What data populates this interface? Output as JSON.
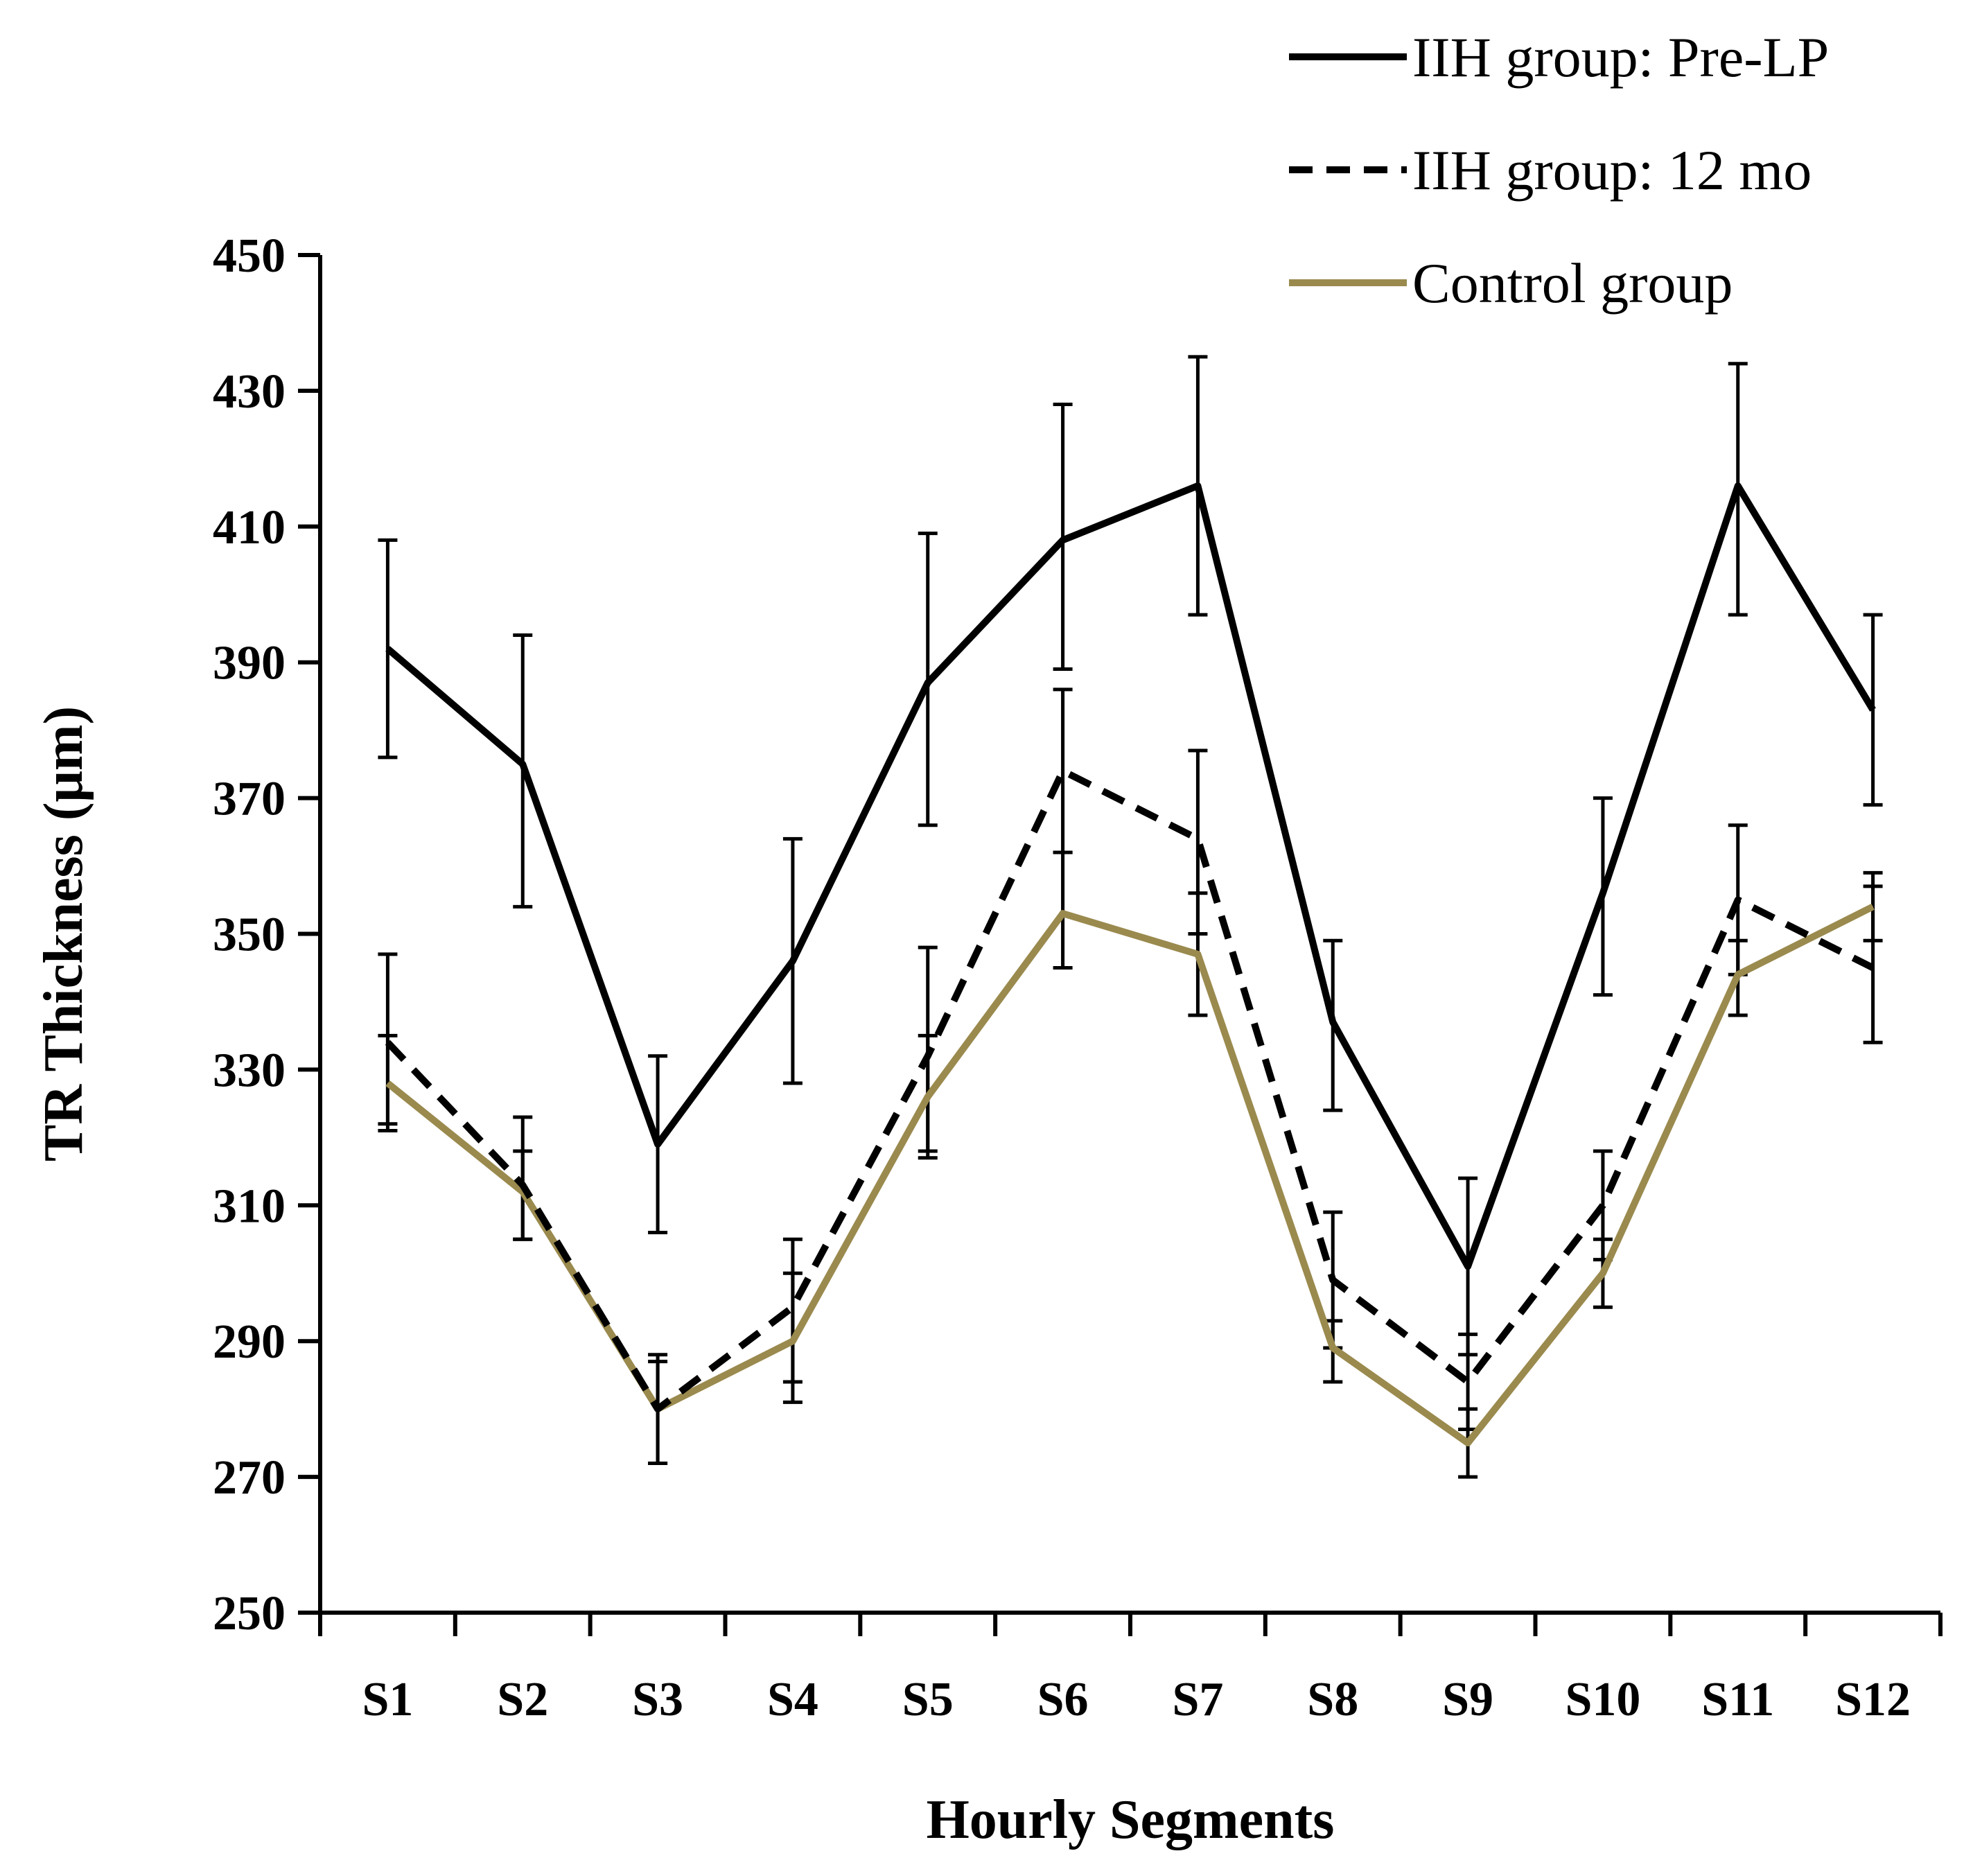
{
  "chart_data": {
    "type": "line",
    "title": "",
    "xlabel": "Hourly Segments",
    "ylabel": "TR Thickness (μm)",
    "ylim": [
      250,
      450
    ],
    "yticks": [
      250,
      270,
      290,
      310,
      330,
      350,
      370,
      390,
      410,
      430,
      450
    ],
    "ytick_labels": [
      "250",
      "270",
      "290",
      "310",
      "330",
      "350",
      "370",
      "390",
      "410",
      "430",
      "450"
    ],
    "categories": [
      "S1",
      "S2",
      "S3",
      "S4",
      "S5",
      "S6",
      "S7",
      "S8",
      "S9",
      "S10",
      "S11",
      "S12"
    ],
    "grid": false,
    "legend_position": "top-right",
    "series": [
      {
        "name": "IIH group: Pre-LP",
        "color": "#000000",
        "style": "solid",
        "values": [
          392,
          375,
          319,
          346,
          387,
          408,
          416,
          337,
          301,
          356,
          416,
          383
        ],
        "err_low": [
          376,
          354,
          306,
          328,
          366,
          389,
          397,
          324,
          288,
          341,
          397,
          369
        ],
        "err_high": [
          408,
          394,
          332,
          364,
          409,
          428,
          435,
          349,
          314,
          370,
          434,
          397
        ]
      },
      {
        "name": "IIH group: 12 mo",
        "color": "#000000",
        "style": "dashed",
        "values": [
          334,
          313,
          280,
          295,
          332,
          374,
          364,
          299,
          284,
          310,
          355,
          345
        ],
        "err_low": [
          322,
          305,
          272,
          284,
          317,
          362,
          350,
          289,
          277,
          302,
          344,
          334
        ],
        "err_high": [
          347,
          323,
          287,
          305,
          348,
          386,
          377,
          309,
          291,
          318,
          366,
          357
        ]
      },
      {
        "name": "Control group",
        "color": "#9a8a4e",
        "style": "solid",
        "values": [
          328,
          312,
          280,
          290,
          326,
          353,
          347,
          289,
          275,
          300,
          344,
          354
        ],
        "err_low": [
          321,
          305,
          272,
          281,
          318,
          345,
          338,
          284,
          270,
          295,
          338,
          349
        ],
        "err_high": [
          335,
          318,
          288,
          300,
          335,
          362,
          356,
          293,
          280,
          305,
          349,
          359
        ]
      }
    ]
  }
}
